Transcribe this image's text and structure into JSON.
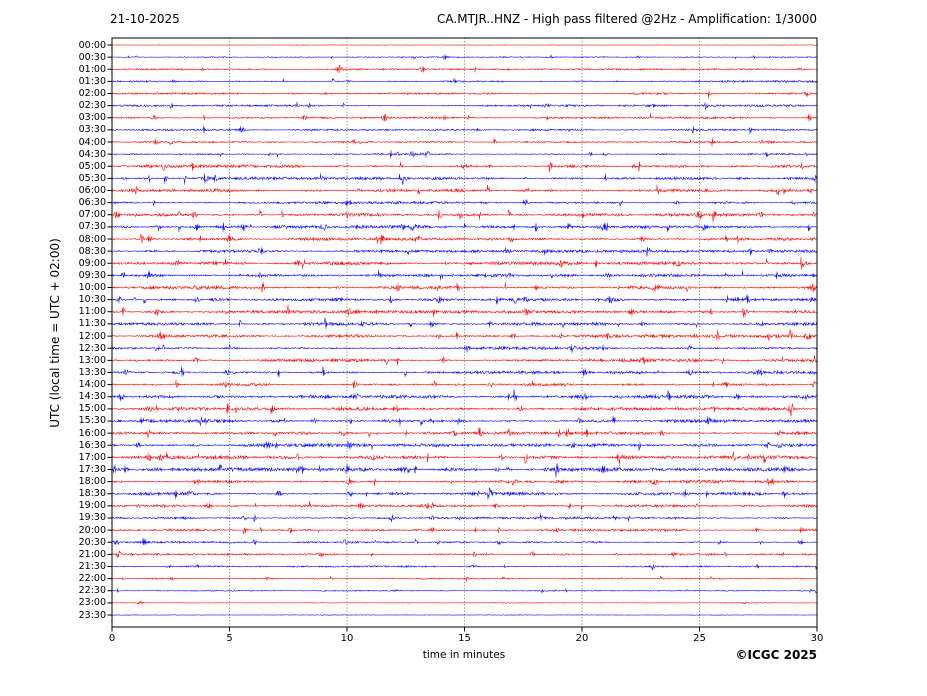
{
  "header": {
    "date": "21-10-2025",
    "title": "CA.MTJR..HNZ - High pass filtered @2Hz - Amplification: 1/3000"
  },
  "footer": {
    "credit": "©ICGC 2025"
  },
  "axes": {
    "y_label": "UTC (local time = UTC + 02:00)",
    "x_label": "time in minutes",
    "x_ticks": [
      0,
      5,
      10,
      15,
      20,
      25,
      30
    ],
    "grid_minutes": [
      5,
      10,
      15,
      20,
      25
    ]
  },
  "colors": {
    "trace_red": "#ff0000",
    "trace_blue": "#0000ff",
    "grid": "#555555",
    "frame": "#000000",
    "text": "#000000"
  },
  "chart_data": {
    "type": "line",
    "subtype": "helicorder-seismogram",
    "station": "CA.MTJR..HNZ",
    "filter": "High pass filtered @2Hz",
    "amplification": "1/3000",
    "date": "21-10-2025",
    "title": "CA.MTJR..HNZ - High pass filtered @2Hz - Amplification: 1/3000",
    "xlabel": "time in minutes",
    "ylabel": "UTC (local time = UTC + 02:00)",
    "xlim": [
      0,
      30
    ],
    "x_ticks": [
      0,
      5,
      10,
      15,
      20,
      25,
      30
    ],
    "grid": "vertical-dotted",
    "row_interval_minutes": 30,
    "rows": [
      {
        "label": "00:00",
        "color": "red",
        "activity": 0.25,
        "events": []
      },
      {
        "label": "00:30",
        "color": "blue",
        "activity": 0.5,
        "events": [
          [
            14.2,
            2.5
          ]
        ]
      },
      {
        "label": "01:00",
        "color": "red",
        "activity": 0.7,
        "events": [
          [
            9.7,
            4.5
          ],
          [
            13.2,
            2.5
          ],
          [
            29.3,
            1.5
          ]
        ]
      },
      {
        "label": "01:30",
        "color": "blue",
        "activity": 0.9,
        "events": [
          [
            2.6,
            1.5
          ],
          [
            10.1,
            1.2
          ]
        ]
      },
      {
        "label": "02:00",
        "color": "red",
        "activity": 0.9,
        "events": [
          [
            29.6,
            2.5
          ]
        ]
      },
      {
        "label": "02:30",
        "color": "blue",
        "activity": 0.9,
        "events": [
          [
            18.5,
            1.5
          ],
          [
            23.0,
            1.5
          ]
        ]
      },
      {
        "label": "03:00",
        "color": "red",
        "activity": 0.9,
        "events": [
          [
            1.8,
            3.0
          ],
          [
            8.2,
            2.0
          ],
          [
            11.6,
            3.0
          ],
          [
            29.7,
            3.0
          ]
        ]
      },
      {
        "label": "03:30",
        "color": "blue",
        "activity": 0.8,
        "events": [
          [
            5.5,
            2.5
          ]
        ]
      },
      {
        "label": "04:00",
        "color": "red",
        "activity": 0.8,
        "events": [
          [
            1.9,
            2.5
          ],
          [
            28.0,
            1.5
          ]
        ]
      },
      {
        "label": "04:30",
        "color": "blue",
        "activity": 0.8,
        "events": [
          [
            12.8,
            2.5
          ],
          [
            13.4,
            2.5
          ],
          [
            21.0,
            1.5
          ],
          [
            27.9,
            2.0
          ]
        ]
      },
      {
        "label": "05:00",
        "color": "red",
        "activity": 1.4,
        "events": [
          [
            15.0,
            1.5
          ],
          [
            22.2,
            1.8
          ]
        ]
      },
      {
        "label": "05:30",
        "color": "blue",
        "activity": 1.2,
        "events": [
          [
            4.0,
            2.2
          ],
          [
            4.4,
            2.0
          ],
          [
            12.4,
            2.5
          ],
          [
            29.9,
            2.5
          ]
        ]
      },
      {
        "label": "06:00",
        "color": "red",
        "activity": 1.4,
        "events": [
          [
            10.5,
            1.8
          ],
          [
            17.7,
            2.2
          ],
          [
            29.7,
            2.5
          ]
        ]
      },
      {
        "label": "06:30",
        "color": "blue",
        "activity": 1.2,
        "events": [
          [
            10.0,
            1.8
          ],
          [
            17.6,
            2.2
          ],
          [
            24.0,
            1.8
          ],
          [
            29.0,
            1.5
          ]
        ]
      },
      {
        "label": "07:00",
        "color": "red",
        "activity": 1.4,
        "events": [
          [
            0.2,
            3.5
          ],
          [
            3.5,
            3.2
          ],
          [
            10.0,
            2.0
          ],
          [
            25.0,
            2.5
          ],
          [
            27.6,
            2.2
          ],
          [
            29.9,
            2.5
          ]
        ]
      },
      {
        "label": "07:30",
        "color": "blue",
        "activity": 1.4,
        "events": [
          [
            2.0,
            3.5
          ],
          [
            3.6,
            3.3
          ],
          [
            5.6,
            3.0
          ],
          [
            9.0,
            2.6
          ],
          [
            12.3,
            3.0
          ],
          [
            12.8,
            3.0
          ],
          [
            20.9,
            2.5
          ],
          [
            25.2,
            2.2
          ]
        ]
      },
      {
        "label": "08:00",
        "color": "red",
        "activity": 1.4,
        "events": [
          [
            1.6,
            2.8
          ],
          [
            5.0,
            2.2
          ],
          [
            13.0,
            2.2
          ],
          [
            17.0,
            2.6
          ],
          [
            22.6,
            2.6
          ],
          [
            26.1,
            2.2
          ]
        ]
      },
      {
        "label": "08:30",
        "color": "blue",
        "activity": 1.2,
        "events": [
          [
            6.3,
            1.8
          ],
          [
            16.8,
            2.2
          ],
          [
            18.4,
            1.8
          ],
          [
            28.0,
            1.5
          ]
        ]
      },
      {
        "label": "09:00",
        "color": "red",
        "activity": 1.4,
        "events": [
          [
            2.8,
            2.2
          ],
          [
            7.9,
            2.2
          ],
          [
            19.1,
            2.6
          ],
          [
            24.1,
            1.8
          ]
        ]
      },
      {
        "label": "09:30",
        "color": "blue",
        "activity": 1.4,
        "events": [
          [
            0.5,
            2.6
          ],
          [
            1.6,
            2.2
          ],
          [
            6.3,
            2.2
          ],
          [
            16.9,
            1.8
          ],
          [
            21.1,
            2.2
          ],
          [
            26.1,
            1.8
          ]
        ]
      },
      {
        "label": "10:00",
        "color": "red",
        "activity": 1.4,
        "events": [
          [
            3.6,
            1.8
          ],
          [
            12.2,
            2.6
          ],
          [
            13.9,
            2.2
          ],
          [
            18.1,
            2.2
          ],
          [
            23.1,
            2.2
          ],
          [
            29.8,
            3.0
          ]
        ]
      },
      {
        "label": "10:30",
        "color": "blue",
        "activity": 1.4,
        "events": [
          [
            0.3,
            2.6
          ],
          [
            3.6,
            2.2
          ],
          [
            13.9,
            2.2
          ],
          [
            17.6,
            2.2
          ],
          [
            21.2,
            2.6
          ],
          [
            26.6,
            1.8
          ],
          [
            29.8,
            2.6
          ]
        ]
      },
      {
        "label": "11:00",
        "color": "red",
        "activity": 1.4,
        "events": [
          [
            1.9,
            2.6
          ],
          [
            10.1,
            2.2
          ],
          [
            17.6,
            2.2
          ],
          [
            22.1,
            2.6
          ],
          [
            27.0,
            1.8
          ]
        ]
      },
      {
        "label": "11:30",
        "color": "blue",
        "activity": 1.4,
        "events": [
          [
            10.6,
            2.2
          ],
          [
            13.6,
            2.2
          ],
          [
            16.1,
            1.8
          ],
          [
            22.6,
            1.8
          ],
          [
            27.6,
            1.8
          ]
        ]
      },
      {
        "label": "12:00",
        "color": "red",
        "activity": 1.4,
        "events": [
          [
            2.1,
            2.6
          ],
          [
            13.9,
            2.2
          ],
          [
            17.1,
            2.2
          ],
          [
            21.1,
            2.2
          ],
          [
            29.6,
            2.6
          ]
        ]
      },
      {
        "label": "12:30",
        "color": "blue",
        "activity": 1.4,
        "events": [
          [
            1.9,
            2.2
          ],
          [
            15.1,
            2.6
          ],
          [
            19.6,
            3.0
          ],
          [
            24.6,
            2.2
          ]
        ]
      },
      {
        "label": "13:00",
        "color": "red",
        "activity": 1.5,
        "events": [
          [
            3.6,
            2.6
          ],
          [
            14.1,
            2.6
          ],
          [
            22.6,
            2.2
          ],
          [
            29.9,
            3.5
          ]
        ]
      },
      {
        "label": "13:30",
        "color": "blue",
        "activity": 1.4,
        "events": [
          [
            0.6,
            2.6
          ],
          [
            4.9,
            2.6
          ],
          [
            20.1,
            2.2
          ],
          [
            24.6,
            2.6
          ],
          [
            27.6,
            2.2
          ]
        ]
      },
      {
        "label": "14:00",
        "color": "red",
        "activity": 1.4,
        "events": [
          [
            4.9,
            2.6
          ],
          [
            10.3,
            2.6
          ],
          [
            16.1,
            2.2
          ],
          [
            26.1,
            2.2
          ],
          [
            29.9,
            3.2
          ]
        ]
      },
      {
        "label": "14:30",
        "color": "blue",
        "activity": 1.5,
        "events": [
          [
            0.4,
            3.0
          ],
          [
            10.4,
            2.6
          ],
          [
            16.9,
            2.2
          ],
          [
            20.1,
            3.0
          ],
          [
            26.6,
            2.6
          ],
          [
            29.5,
            2.6
          ]
        ]
      },
      {
        "label": "15:00",
        "color": "red",
        "activity": 1.5,
        "events": [
          [
            1.6,
            2.6
          ],
          [
            6.9,
            2.2
          ],
          [
            12.1,
            2.2
          ],
          [
            17.4,
            2.6
          ],
          [
            25.6,
            2.2
          ],
          [
            28.9,
            2.2
          ]
        ]
      },
      {
        "label": "15:30",
        "color": "blue",
        "activity": 1.4,
        "events": [
          [
            1.3,
            2.2
          ],
          [
            8.6,
            2.2
          ],
          [
            13.6,
            2.2
          ],
          [
            19.9,
            2.2
          ],
          [
            25.4,
            2.2
          ]
        ]
      },
      {
        "label": "16:00",
        "color": "red",
        "activity": 1.4,
        "events": [
          [
            9.8,
            3.0
          ],
          [
            14.6,
            2.2
          ],
          [
            19.4,
            2.6
          ],
          [
            23.4,
            2.2
          ],
          [
            28.4,
            2.2
          ]
        ]
      },
      {
        "label": "16:30",
        "color": "blue",
        "activity": 1.5,
        "events": [
          [
            1.1,
            2.6
          ],
          [
            6.6,
            2.6
          ],
          [
            10.1,
            2.6
          ],
          [
            19.6,
            2.2
          ],
          [
            27.9,
            3.0
          ],
          [
            28.4,
            2.6
          ]
        ]
      },
      {
        "label": "17:00",
        "color": "red",
        "activity": 1.6,
        "events": [
          [
            1.6,
            3.0
          ],
          [
            2.1,
            2.6
          ],
          [
            11.1,
            2.2
          ],
          [
            16.6,
            2.6
          ],
          [
            21.6,
            2.2
          ],
          [
            27.1,
            2.6
          ]
        ]
      },
      {
        "label": "17:30",
        "color": "blue",
        "activity": 1.6,
        "events": [
          [
            0.6,
            3.0
          ],
          [
            7.9,
            2.6
          ],
          [
            12.4,
            2.2
          ],
          [
            16.4,
            2.6
          ],
          [
            20.9,
            2.6
          ],
          [
            28.7,
            3.0
          ]
        ]
      },
      {
        "label": "18:00",
        "color": "red",
        "activity": 1.5,
        "events": [
          [
            3.6,
            2.6
          ],
          [
            10.1,
            2.6
          ],
          [
            14.4,
            2.2
          ],
          [
            17.1,
            2.6
          ],
          [
            23.1,
            2.6
          ],
          [
            28.1,
            2.2
          ]
        ]
      },
      {
        "label": "18:30",
        "color": "blue",
        "activity": 1.5,
        "events": [
          [
            3.3,
            2.2
          ],
          [
            7.1,
            2.6
          ],
          [
            10.1,
            2.2
          ],
          [
            16.1,
            2.6
          ],
          [
            24.4,
            2.2
          ],
          [
            28.6,
            3.2
          ]
        ]
      },
      {
        "label": "19:00",
        "color": "red",
        "activity": 1.2,
        "events": [
          [
            1.1,
            2.2
          ],
          [
            4.1,
            2.2
          ],
          [
            10.6,
            2.6
          ],
          [
            16.4,
            2.2
          ],
          [
            24.9,
            1.8
          ]
        ]
      },
      {
        "label": "19:30",
        "color": "blue",
        "activity": 1.1,
        "events": [
          [
            5.6,
            2.2
          ],
          [
            11.9,
            2.6
          ],
          [
            13.6,
            2.2
          ],
          [
            21.4,
            1.8
          ]
        ]
      },
      {
        "label": "20:00",
        "color": "red",
        "activity": 1.1,
        "events": [
          [
            7.6,
            2.2
          ],
          [
            13.6,
            2.6
          ],
          [
            18.9,
            1.8
          ],
          [
            27.4,
            1.8
          ]
        ]
      },
      {
        "label": "20:30",
        "color": "blue",
        "activity": 0.9,
        "events": [
          [
            0.2,
            3.2
          ],
          [
            9.9,
            2.6
          ],
          [
            16.5,
            2.2
          ],
          [
            27.6,
            1.8
          ],
          [
            29.3,
            2.2
          ]
        ]
      },
      {
        "label": "21:00",
        "color": "red",
        "activity": 0.9,
        "events": [
          [
            0.3,
            3.2
          ],
          [
            8.9,
            1.8
          ],
          [
            17.9,
            2.6
          ],
          [
            23.9,
            1.5
          ]
        ]
      },
      {
        "label": "21:30",
        "color": "blue",
        "activity": 0.75,
        "events": [
          [
            2.4,
            1.2
          ],
          [
            15.4,
            1.2
          ]
        ]
      },
      {
        "label": "22:00",
        "color": "red",
        "activity": 0.6,
        "events": [
          [
            8.6,
            1.0
          ]
        ]
      },
      {
        "label": "22:30",
        "color": "blue",
        "activity": 0.5,
        "events": [
          [
            12.1,
            1.0
          ],
          [
            20.6,
            0.8
          ]
        ]
      },
      {
        "label": "23:00",
        "color": "red",
        "activity": 0.45,
        "events": [
          [
            1.2,
            2.2
          ],
          [
            26.9,
            1.2
          ]
        ]
      },
      {
        "label": "23:30",
        "color": "blue",
        "activity": 0.3,
        "events": []
      }
    ]
  }
}
